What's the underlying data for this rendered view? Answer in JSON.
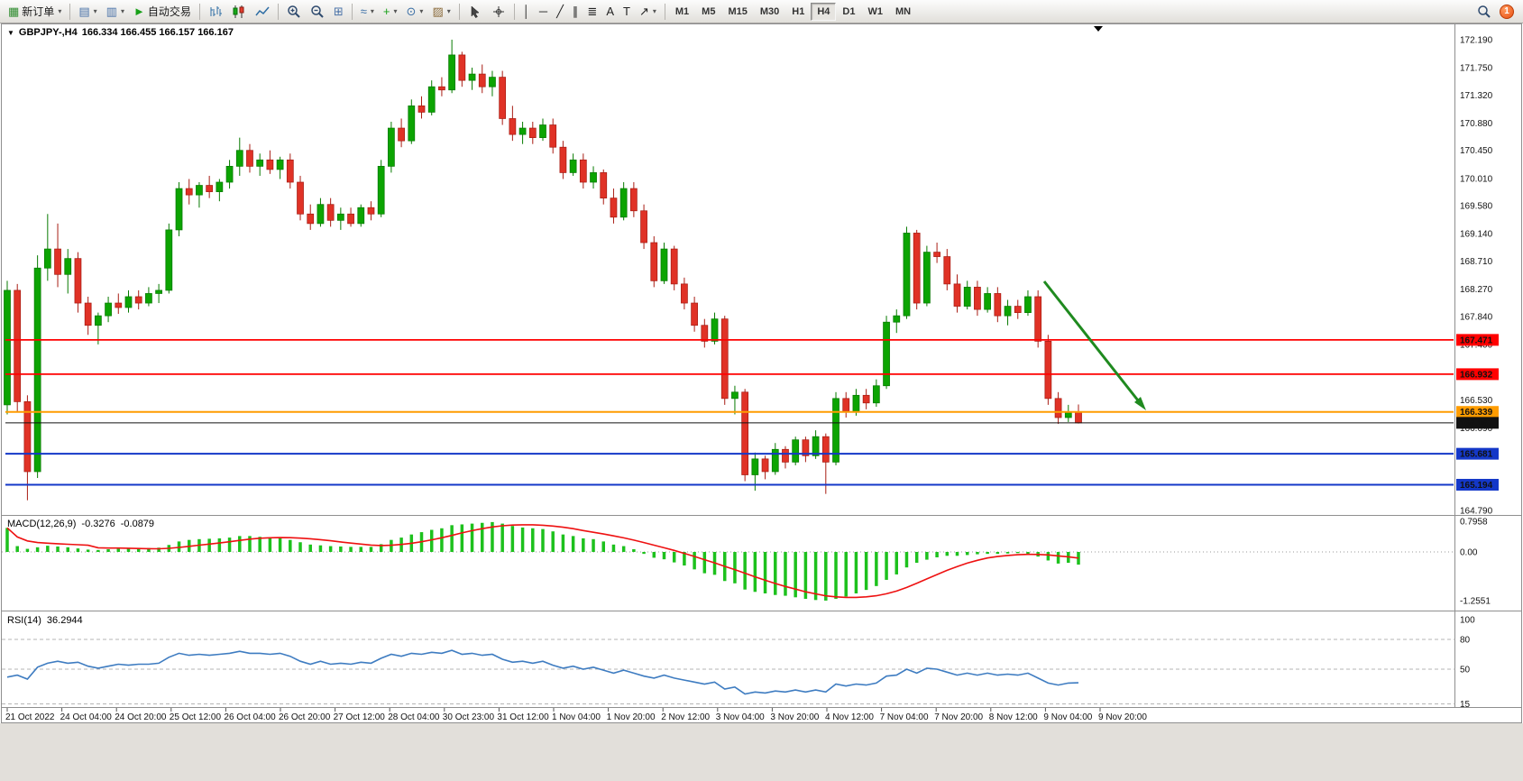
{
  "toolbar": {
    "caret_glyph": "▾",
    "buttons": [
      {
        "name": "new-order-button",
        "icon": "new-order-icon",
        "glyph": "▦",
        "color": "#2e8b2e",
        "label": "新订单",
        "caret": true
      },
      {
        "type": "sep"
      },
      {
        "name": "new-chart-button",
        "icon": "new-chart-icon",
        "glyph": "▤",
        "color": "#4a72a8",
        "caret": true
      },
      {
        "name": "profiles-button",
        "icon": "profiles-icon",
        "glyph": "▥",
        "color": "#4a72a8",
        "caret": true
      },
      {
        "name": "auto-trading-button",
        "icon": "play-icon",
        "glyph": "►",
        "color": "#18a018",
        "label": "自动交易"
      },
      {
        "type": "sep"
      },
      {
        "name": "bar-chart-button",
        "svg": "bars"
      },
      {
        "name": "candlestick-button",
        "svg": "candles"
      },
      {
        "name": "line-chart-button",
        "svg": "line"
      },
      {
        "type": "sep"
      },
      {
        "name": "zoom-in-button",
        "svg": "zoomin"
      },
      {
        "name": "zoom-out-button",
        "svg": "zoomout"
      },
      {
        "name": "tile-windows-button",
        "icon": "tile-windows-icon",
        "glyph": "⊞",
        "color": "#4a72a8"
      },
      {
        "type": "sep"
      },
      {
        "name": "indicators-button",
        "icon": "indicators-icon",
        "glyph": "≈",
        "color": "#3a6ea5",
        "caret": true
      },
      {
        "name": "add-indicator-button",
        "icon": "plus-icon",
        "glyph": "+",
        "color": "#18a018",
        "caret": true
      },
      {
        "name": "periods-button",
        "icon": "clock-icon",
        "glyph": "⊙",
        "color": "#3a6ea5",
        "caret": true
      },
      {
        "name": "templates-button",
        "icon": "template-icon",
        "glyph": "▨",
        "color": "#8a6a3a",
        "caret": true
      },
      {
        "type": "sep"
      },
      {
        "name": "cursor-button",
        "svg": "cursor"
      },
      {
        "name": "crosshair-button",
        "svg": "crosshair"
      },
      {
        "type": "sep"
      },
      {
        "name": "vertical-line-button",
        "icon": "vline-icon",
        "glyph": "│",
        "color": "#222"
      },
      {
        "name": "horizontal-line-button",
        "icon": "hline-icon",
        "glyph": "─",
        "color": "#222"
      },
      {
        "name": "trendline-button",
        "icon": "trendline-icon",
        "glyph": "╱",
        "color": "#222"
      },
      {
        "name": "channel-button",
        "icon": "channel-icon",
        "glyph": "∥",
        "color": "#222"
      },
      {
        "name": "fibonacci-button",
        "icon": "fibonacci-icon",
        "glyph": "≣",
        "color": "#222"
      },
      {
        "name": "text-button",
        "icon": "text-icon",
        "glyph": "A",
        "color": "#222"
      },
      {
        "name": "label-button",
        "icon": "label-icon",
        "glyph": "T",
        "color": "#222"
      },
      {
        "name": "arrows-button",
        "icon": "arrow-objects-icon",
        "glyph": "↗",
        "color": "#222",
        "caret": true
      },
      {
        "type": "sep"
      }
    ],
    "timeframes": [
      "M1",
      "M5",
      "M15",
      "M30",
      "H1",
      "H4",
      "D1",
      "W1",
      "MN"
    ],
    "active_timeframe": "H4",
    "notification_count": "1"
  },
  "chart": {
    "dropdown_glyph": "▼",
    "symbol_period": "GBPJPY-,H4",
    "ohlc_text": "166.334 166.455 166.157 166.167"
  },
  "price_axis": [
    "172.190",
    "171.750",
    "171.320",
    "170.880",
    "170.450",
    "170.010",
    "169.580",
    "169.140",
    "168.710",
    "168.270",
    "167.840",
    "167.400",
    "166.960",
    "166.530",
    "166.090",
    "165.650",
    "165.210",
    "164.790"
  ],
  "time_axis": [
    "21 Oct 2022",
    "24 Oct 04:00",
    "24 Oct 20:00",
    "25 Oct 12:00",
    "26 Oct 04:00",
    "26 Oct 20:00",
    "27 Oct 12:00",
    "28 Oct 04:00",
    "30 Oct 23:00",
    "31 Oct 12:00",
    "1 Nov 04:00",
    "1 Nov 20:00",
    "2 Nov 12:00",
    "3 Nov 04:00",
    "3 Nov 20:00",
    "4 Nov 12:00",
    "7 Nov 04:00",
    "7 Nov 20:00",
    "8 Nov 12:00",
    "9 Nov 04:00",
    "9 Nov 20:00"
  ],
  "hlines": [
    {
      "name": "resistance-line-1",
      "price": 167.471,
      "label": "167.471",
      "color": "#ff0000",
      "text_color": "#ffffff",
      "width": 1.8
    },
    {
      "name": "resistance-line-2",
      "price": 166.932,
      "label": "166.932",
      "color": "#ff0000",
      "text_color": "#ffffff",
      "width": 1.8
    },
    {
      "name": "pivot-line-orange",
      "price": 166.339,
      "label": "166.339",
      "color": "#ff9c00",
      "text_color": "#3a2a00",
      "width": 2
    },
    {
      "name": "bid-price-line",
      "price": 166.167,
      "label": "166.167",
      "color": "#111111",
      "text_color": "#ffffff",
      "width": 1
    },
    {
      "name": "support-line-1",
      "price": 165.681,
      "label": "165.681",
      "color": "#1438c8",
      "text_color": "#ffffff",
      "width": 2
    },
    {
      "name": "support-line-2",
      "price": 165.194,
      "label": "165.194",
      "color": "#1438c8",
      "text_color": "#ffffff",
      "width": 2
    }
  ],
  "arrow_annotation": {
    "color": "#1f8a1f",
    "from": [
      1158,
      312
    ],
    "to": [
      1262,
      444
    ]
  },
  "chart_data": {
    "type": "candlestick",
    "symbol": "GBPJPY-",
    "timeframe": "H4",
    "last_ohlc": {
      "open": 166.334,
      "high": 166.455,
      "low": 166.157,
      "close": 166.167
    },
    "ylim": [
      164.79,
      172.19
    ],
    "candles": [
      [
        166.45,
        168.4,
        166.3,
        168.25
      ],
      [
        168.25,
        168.35,
        166.35,
        166.5
      ],
      [
        166.5,
        166.6,
        164.95,
        165.4
      ],
      [
        165.4,
        168.8,
        165.3,
        168.6
      ],
      [
        168.6,
        169.45,
        168.4,
        168.9
      ],
      [
        168.9,
        169.3,
        168.3,
        168.5
      ],
      [
        168.5,
        168.9,
        168.2,
        168.75
      ],
      [
        168.75,
        168.85,
        167.9,
        168.05
      ],
      [
        168.05,
        168.15,
        167.55,
        167.7
      ],
      [
        167.7,
        167.9,
        167.4,
        167.85
      ],
      [
        167.85,
        168.15,
        167.75,
        168.05
      ],
      [
        168.05,
        168.2,
        167.88,
        167.98
      ],
      [
        167.98,
        168.25,
        167.9,
        168.15
      ],
      [
        168.15,
        168.25,
        167.95,
        168.05
      ],
      [
        168.05,
        168.3,
        168.0,
        168.2
      ],
      [
        168.2,
        168.35,
        168.05,
        168.25
      ],
      [
        168.25,
        169.3,
        168.2,
        169.2
      ],
      [
        169.2,
        169.95,
        169.1,
        169.85
      ],
      [
        169.85,
        170.0,
        169.6,
        169.75
      ],
      [
        169.75,
        169.95,
        169.55,
        169.9
      ],
      [
        169.9,
        170.05,
        169.7,
        169.8
      ],
      [
        169.8,
        170.0,
        169.65,
        169.95
      ],
      [
        169.95,
        170.3,
        169.85,
        170.2
      ],
      [
        170.2,
        170.65,
        170.05,
        170.45
      ],
      [
        170.45,
        170.55,
        170.1,
        170.2
      ],
      [
        170.2,
        170.4,
        170.05,
        170.3
      ],
      [
        170.3,
        170.45,
        170.08,
        170.15
      ],
      [
        170.15,
        170.35,
        170.0,
        170.3
      ],
      [
        170.3,
        170.4,
        169.85,
        169.95
      ],
      [
        169.95,
        170.05,
        169.35,
        169.45
      ],
      [
        169.45,
        169.6,
        169.2,
        169.3
      ],
      [
        169.3,
        169.7,
        169.25,
        169.6
      ],
      [
        169.6,
        169.7,
        169.25,
        169.35
      ],
      [
        169.35,
        169.55,
        169.2,
        169.45
      ],
      [
        169.45,
        169.55,
        169.25,
        169.3
      ],
      [
        169.3,
        169.6,
        169.25,
        169.55
      ],
      [
        169.55,
        169.65,
        169.35,
        169.45
      ],
      [
        169.45,
        170.3,
        169.4,
        170.2
      ],
      [
        170.2,
        170.9,
        170.1,
        170.8
      ],
      [
        170.8,
        170.95,
        170.5,
        170.6
      ],
      [
        170.6,
        171.25,
        170.55,
        171.15
      ],
      [
        171.15,
        171.3,
        170.95,
        171.05
      ],
      [
        171.05,
        171.55,
        171.0,
        171.45
      ],
      [
        171.45,
        171.6,
        171.3,
        171.4
      ],
      [
        171.4,
        172.19,
        171.35,
        171.95
      ],
      [
        171.95,
        172.0,
        171.45,
        171.55
      ],
      [
        171.55,
        171.75,
        171.4,
        171.65
      ],
      [
        171.65,
        171.8,
        171.35,
        171.45
      ],
      [
        171.45,
        171.7,
        171.3,
        171.6
      ],
      [
        171.6,
        171.7,
        170.85,
        170.95
      ],
      [
        170.95,
        171.15,
        170.6,
        170.7
      ],
      [
        170.7,
        170.9,
        170.55,
        170.8
      ],
      [
        170.8,
        170.9,
        170.55,
        170.65
      ],
      [
        170.65,
        170.95,
        170.6,
        170.85
      ],
      [
        170.85,
        170.95,
        170.4,
        170.5
      ],
      [
        170.5,
        170.6,
        170.0,
        170.1
      ],
      [
        170.1,
        170.4,
        170.05,
        170.3
      ],
      [
        170.3,
        170.4,
        169.85,
        169.95
      ],
      [
        169.95,
        170.2,
        169.85,
        170.1
      ],
      [
        170.1,
        170.15,
        169.6,
        169.7
      ],
      [
        169.7,
        169.85,
        169.3,
        169.4
      ],
      [
        169.4,
        169.95,
        169.35,
        169.85
      ],
      [
        169.85,
        169.95,
        169.4,
        169.5
      ],
      [
        169.5,
        169.6,
        168.9,
        169.0
      ],
      [
        169.0,
        169.1,
        168.3,
        168.4
      ],
      [
        168.4,
        169.0,
        168.35,
        168.9
      ],
      [
        168.9,
        168.95,
        168.25,
        168.35
      ],
      [
        168.35,
        168.45,
        167.95,
        168.05
      ],
      [
        168.05,
        168.15,
        167.6,
        167.7
      ],
      [
        167.7,
        167.8,
        167.35,
        167.45
      ],
      [
        167.45,
        167.9,
        167.4,
        167.8
      ],
      [
        167.8,
        167.85,
        166.45,
        166.55
      ],
      [
        166.55,
        166.75,
        166.3,
        166.65
      ],
      [
        166.65,
        166.7,
        165.25,
        165.35
      ],
      [
        165.35,
        165.7,
        165.1,
        165.6
      ],
      [
        165.6,
        165.65,
        165.28,
        165.4
      ],
      [
        165.4,
        165.85,
        165.35,
        165.75
      ],
      [
        165.75,
        165.8,
        165.45,
        165.55
      ],
      [
        165.55,
        165.95,
        165.5,
        165.9
      ],
      [
        165.9,
        165.95,
        165.55,
        165.65
      ],
      [
        165.65,
        166.05,
        165.6,
        165.95
      ],
      [
        165.95,
        166.0,
        165.05,
        165.55
      ],
      [
        165.55,
        166.65,
        165.5,
        166.55
      ],
      [
        166.55,
        166.65,
        166.25,
        166.35
      ],
      [
        166.35,
        166.7,
        166.28,
        166.6
      ],
      [
        166.6,
        166.7,
        166.38,
        166.48
      ],
      [
        166.48,
        166.85,
        166.42,
        166.75
      ],
      [
        166.75,
        167.85,
        166.7,
        167.75
      ],
      [
        167.75,
        167.95,
        167.58,
        167.85
      ],
      [
        167.85,
        169.25,
        167.8,
        169.15
      ],
      [
        169.15,
        169.2,
        167.95,
        168.05
      ],
      [
        168.05,
        168.95,
        168.0,
        168.85
      ],
      [
        168.85,
        169.0,
        168.68,
        168.78
      ],
      [
        168.78,
        168.9,
        168.25,
        168.35
      ],
      [
        168.35,
        168.5,
        167.9,
        168.0
      ],
      [
        168.0,
        168.4,
        167.95,
        168.3
      ],
      [
        168.3,
        168.4,
        167.85,
        167.95
      ],
      [
        167.95,
        168.3,
        167.9,
        168.2
      ],
      [
        168.2,
        168.3,
        167.75,
        167.85
      ],
      [
        167.85,
        168.1,
        167.7,
        168.0
      ],
      [
        168.0,
        168.1,
        167.8,
        167.9
      ],
      [
        167.9,
        168.25,
        167.85,
        168.15
      ],
      [
        168.15,
        168.25,
        167.35,
        167.45
      ],
      [
        167.45,
        167.55,
        166.45,
        166.55
      ],
      [
        166.55,
        166.65,
        166.15,
        166.25
      ],
      [
        166.25,
        166.45,
        166.18,
        166.33
      ],
      [
        166.334,
        166.455,
        166.157,
        166.167
      ]
    ],
    "macd": {
      "label": "MACD(12,26,9)",
      "value_main": "-0.3276",
      "value_signal": "-0.0879",
      "scale_labels": [
        [
          "0.7958",
          0.7958
        ],
        [
          "0.00",
          0
        ],
        [
          "-1.2551",
          -1.2551
        ]
      ],
      "histogram": [
        0.62,
        0.15,
        0.08,
        0.12,
        0.16,
        0.14,
        0.12,
        0.09,
        0.06,
        0.05,
        0.07,
        0.08,
        0.09,
        0.09,
        0.1,
        0.11,
        0.18,
        0.27,
        0.31,
        0.33,
        0.34,
        0.35,
        0.37,
        0.41,
        0.41,
        0.39,
        0.37,
        0.35,
        0.31,
        0.25,
        0.19,
        0.17,
        0.15,
        0.14,
        0.13,
        0.13,
        0.13,
        0.2,
        0.31,
        0.37,
        0.45,
        0.51,
        0.57,
        0.61,
        0.69,
        0.71,
        0.73,
        0.75,
        0.77,
        0.73,
        0.67,
        0.63,
        0.61,
        0.59,
        0.53,
        0.45,
        0.41,
        0.35,
        0.33,
        0.27,
        0.19,
        0.15,
        0.07,
        -0.05,
        -0.15,
        -0.19,
        -0.27,
        -0.35,
        -0.45,
        -0.55,
        -0.59,
        -0.75,
        -0.81,
        -0.97,
        -1.03,
        -1.07,
        -1.11,
        -1.13,
        -1.17,
        -1.21,
        -1.24,
        -1.255,
        -1.21,
        -1.15,
        -1.07,
        -0.98,
        -0.88,
        -0.72,
        -0.58,
        -0.4,
        -0.28,
        -0.2,
        -0.14,
        -0.1,
        -0.1,
        -0.08,
        -0.06,
        -0.05,
        -0.05,
        -0.04,
        -0.03,
        -0.05,
        -0.12,
        -0.22,
        -0.3,
        -0.28,
        -0.3276
      ]
    },
    "rsi": {
      "label": "RSI(14)",
      "value": "36.2944",
      "scale_labels": [
        [
          "100",
          100
        ],
        [
          "80",
          80
        ],
        [
          "50",
          50
        ],
        [
          "15",
          15
        ]
      ],
      "levels": [
        80,
        50,
        15
      ],
      "values": [
        42,
        44,
        40,
        52,
        56,
        58,
        56,
        57,
        53,
        51,
        53,
        55,
        54,
        55,
        55,
        56,
        62,
        66,
        64,
        65,
        64,
        65,
        66,
        68,
        66,
        66,
        65,
        66,
        63,
        58,
        55,
        58,
        55,
        56,
        55,
        57,
        56,
        61,
        65,
        63,
        66,
        65,
        67,
        66,
        69,
        65,
        66,
        64,
        65,
        60,
        57,
        58,
        56,
        58,
        54,
        51,
        53,
        50,
        52,
        49,
        46,
        49,
        46,
        43,
        41,
        44,
        41,
        39,
        37,
        35,
        37,
        30,
        32,
        25,
        27,
        26,
        28,
        27,
        29,
        27,
        29,
        27,
        35,
        33,
        35,
        34,
        36,
        43,
        44,
        50,
        46,
        51,
        50,
        47,
        44,
        46,
        44,
        46,
        44,
        45,
        44,
        46,
        41,
        36,
        34,
        36,
        36.29
      ]
    }
  }
}
